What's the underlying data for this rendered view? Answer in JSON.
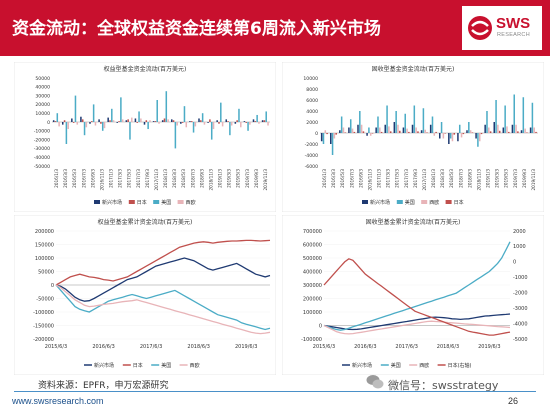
{
  "header": {
    "title": "资金流动：全球权益资金连续第6周流入新兴市场",
    "logo_text": "SWS",
    "logo_sub": "RESEARCH"
  },
  "colors": {
    "header_bg": "#c8102e",
    "em": "#1f3a72",
    "jp": "#c0504d",
    "us": "#4bacc6",
    "eu": "#e8b4b8",
    "dm": "#f2d8d6"
  },
  "source": "资料来源：EPFR，申万宏源研究",
  "footer": {
    "url": "www.swsresearch.com",
    "page": "26",
    "wechat": "微信号：swsstrategy"
  },
  "chart_data": [
    {
      "type": "bar",
      "title": "权益型基金资金流动(百万美元)",
      "yticks": [
        50000,
        40000,
        30000,
        20000,
        10000,
        0,
        -10000,
        -20000,
        -30000,
        -40000,
        -50000
      ],
      "ylim": [
        -50000,
        50000
      ],
      "xticks": [
        "2016/1/3",
        "2016/3/3",
        "2016/5/3",
        "2016/7/3",
        "2016/9/3",
        "2016/11/3",
        "2017/1/3",
        "2017/3/3",
        "2017/5/3",
        "2017/7/3",
        "2017/9/3",
        "2017/11/3",
        "2018/1/3",
        "2018/3/3",
        "2018/5/3",
        "2018/7/3",
        "2018/9/3",
        "2018/11/3",
        "2019/1/3",
        "2019/3/3",
        "2019/5/3",
        "2019/7/3",
        "2019/9/3",
        "2019/11/3"
      ],
      "series": [
        {
          "name": "新兴市场",
          "color": "#1f3a72",
          "values": [
            2000,
            -3000,
            4000,
            6000,
            -2000,
            3000,
            5000,
            -1000,
            2000,
            4000,
            -3000,
            1000,
            2000,
            3000,
            -2000,
            1000,
            4000,
            -1000,
            2000,
            3000,
            -2000,
            1000,
            3000,
            2000
          ]
        },
        {
          "name": "日本",
          "color": "#c0504d",
          "values": [
            1000,
            2000,
            -1000,
            3000,
            1000,
            -2000,
            2000,
            1000,
            3000,
            -1000,
            2000,
            1000,
            4000,
            2000,
            -1000,
            1000,
            2000,
            3000,
            -2000,
            1000,
            2000,
            -1000,
            1000,
            2000
          ]
        },
        {
          "name": "美国",
          "color": "#4bacc6",
          "values": [
            10000,
            -25000,
            30000,
            -15000,
            20000,
            -10000,
            15000,
            28000,
            -20000,
            12000,
            -8000,
            25000,
            35000,
            -30000,
            18000,
            -12000,
            10000,
            -20000,
            22000,
            -15000,
            15000,
            -10000,
            8000,
            12000
          ]
        },
        {
          "name": "西欧",
          "color": "#e8b4b8",
          "values": [
            -5000,
            -8000,
            -3000,
            -6000,
            -4000,
            -7000,
            2000,
            3000,
            5000,
            4000,
            2000,
            -2000,
            3000,
            -4000,
            -6000,
            -5000,
            -3000,
            -8000,
            -5000,
            -4000,
            -6000,
            -3000,
            -2000,
            -4000
          ]
        }
      ],
      "legend_position": "bottom"
    },
    {
      "type": "bar",
      "title": "固收型基金资金流动(百万美元)",
      "yticks": [
        10000,
        8000,
        6000,
        4000,
        2000,
        0,
        -2000,
        -4000,
        -6000
      ],
      "ylim": [
        -6000,
        10000
      ],
      "xticks": [
        "2016/1/3",
        "2016/3/3",
        "2016/5/3",
        "2016/7/3",
        "2016/9/3",
        "2016/11/3",
        "2017/1/3",
        "2017/3/3",
        "2017/5/3",
        "2017/7/3",
        "2017/9/3",
        "2017/11/3",
        "2018/1/3",
        "2018/3/3",
        "2018/5/3",
        "2018/7/3",
        "2018/9/3",
        "2018/11/3",
        "2019/1/3",
        "2019/3/3",
        "2019/5/3",
        "2019/7/3",
        "2019/9/3",
        "2019/11/3"
      ],
      "series": [
        {
          "name": "新兴市场",
          "color": "#1f3a72",
          "values": [
            -1500,
            -2000,
            500,
            1000,
            1500,
            -500,
            1000,
            1500,
            2000,
            1000,
            1500,
            500,
            1500,
            -1000,
            -2000,
            -1500,
            500,
            -1000,
            1500,
            2000,
            1000,
            1500,
            500,
            1000
          ]
        },
        {
          "name": "美国",
          "color": "#4bacc6",
          "values": [
            -2000,
            -4000,
            3000,
            2500,
            4000,
            1000,
            3000,
            5000,
            4000,
            3500,
            5000,
            4500,
            3000,
            2000,
            -1000,
            1500,
            2000,
            -2500,
            4000,
            6000,
            5000,
            7000,
            6500,
            5500
          ]
        },
        {
          "name": "西欧",
          "color": "#e8b4b8",
          "values": [
            500,
            -1000,
            1000,
            800,
            1500,
            -500,
            1000,
            1200,
            1500,
            800,
            1000,
            600,
            -500,
            -1000,
            -1500,
            -800,
            500,
            -1500,
            1000,
            1500,
            1200,
            1500,
            800,
            1000
          ]
        },
        {
          "name": "日本",
          "color": "#c0504d",
          "values": [
            -200,
            -300,
            100,
            200,
            300,
            -100,
            200,
            300,
            400,
            200,
            300,
            100,
            200,
            -100,
            -300,
            -200,
            100,
            -200,
            300,
            400,
            200,
            300,
            100,
            200
          ]
        }
      ],
      "legend_position": "bottom"
    },
    {
      "type": "line",
      "title": "权益型基金累计资金流动(百万美元)",
      "yticks": [
        200000,
        150000,
        100000,
        50000,
        0,
        -50000,
        -100000,
        -150000,
        -200000
      ],
      "ylim": [
        -200000,
        200000
      ],
      "xticks": [
        "2015/6/3",
        "2016/6/3",
        "2017/6/3",
        "2018/6/3",
        "2019/6/3"
      ],
      "x": [
        0,
        0.1,
        0.2,
        0.3,
        0.4,
        0.5,
        0.6,
        0.7,
        0.8,
        0.9,
        1.0,
        1.1,
        1.2,
        1.3,
        1.4,
        1.5,
        1.6,
        1.7,
        1.8,
        1.9,
        2.0,
        2.1,
        2.2,
        2.3,
        2.4,
        2.5,
        2.6,
        2.7,
        2.8,
        2.9,
        3.0,
        3.1,
        3.2,
        3.3,
        3.4,
        3.5,
        3.6,
        3.7,
        3.8,
        3.9,
        4.0,
        4.1,
        4.2,
        4.3,
        4.4,
        4.5
      ],
      "series": [
        {
          "name": "新兴市场",
          "color": "#1f3a72",
          "values": [
            0,
            -5000,
            -15000,
            -30000,
            -45000,
            -55000,
            -60000,
            -58000,
            -50000,
            -40000,
            -30000,
            -20000,
            -10000,
            0,
            10000,
            20000,
            25000,
            30000,
            40000,
            50000,
            60000,
            70000,
            75000,
            80000,
            85000,
            90000,
            95000,
            100000,
            95000,
            90000,
            80000,
            70000,
            60000,
            55000,
            60000,
            65000,
            70000,
            75000,
            80000,
            70000,
            60000,
            50000,
            40000,
            35000,
            30000,
            35000
          ]
        },
        {
          "name": "日本",
          "color": "#c0504d",
          "values": [
            0,
            10000,
            20000,
            30000,
            35000,
            40000,
            35000,
            30000,
            28000,
            25000,
            20000,
            18000,
            15000,
            20000,
            25000,
            30000,
            40000,
            50000,
            60000,
            70000,
            80000,
            90000,
            100000,
            110000,
            120000,
            130000,
            140000,
            145000,
            150000,
            155000,
            158000,
            160000,
            158000,
            155000,
            158000,
            160000,
            162000,
            163000,
            163000,
            164000,
            165000,
            165000,
            164000,
            163000,
            164000,
            165000
          ]
        },
        {
          "name": "美国",
          "color": "#4bacc6",
          "values": [
            0,
            -20000,
            -40000,
            -60000,
            -80000,
            -90000,
            -95000,
            -100000,
            -90000,
            -80000,
            -70000,
            -60000,
            -55000,
            -50000,
            -45000,
            -40000,
            -35000,
            -40000,
            -45000,
            -50000,
            -45000,
            -40000,
            -35000,
            -30000,
            -25000,
            -20000,
            -30000,
            -40000,
            -50000,
            -60000,
            -70000,
            -80000,
            -90000,
            -100000,
            -110000,
            -115000,
            -120000,
            -125000,
            -130000,
            -140000,
            -145000,
            -150000,
            -155000,
            -160000,
            -165000,
            -160000
          ]
        },
        {
          "name": "西欧",
          "color": "#e8b4b8",
          "values": [
            0,
            -10000,
            -25000,
            -40000,
            -55000,
            -65000,
            -75000,
            -80000,
            -78000,
            -75000,
            -72000,
            -70000,
            -68000,
            -65000,
            -62000,
            -60000,
            -58000,
            -55000,
            -60000,
            -65000,
            -70000,
            -75000,
            -80000,
            -85000,
            -90000,
            -95000,
            -100000,
            -105000,
            -110000,
            -115000,
            -120000,
            -125000,
            -130000,
            -135000,
            -140000,
            -145000,
            -150000,
            -155000,
            -160000,
            -165000,
            -170000,
            -175000,
            -178000,
            -180000,
            -178000,
            -175000
          ]
        }
      ],
      "legend_position": "bottom"
    },
    {
      "type": "line",
      "title": "固收型基金累计资金流动(百万美元)",
      "yticks_left": [
        700000,
        600000,
        500000,
        400000,
        300000,
        200000,
        100000,
        0,
        -100000
      ],
      "ylim_left": [
        -100000,
        700000
      ],
      "yticks_right": [
        2000,
        1000,
        0,
        -1000,
        -2000,
        -3000,
        -4000,
        -5000
      ],
      "ylim_right": [
        -5000,
        2000
      ],
      "xticks": [
        "2015/6/3",
        "2016/6/3",
        "2017/6/3",
        "2018/6/3",
        "2019/6/3"
      ],
      "x": [
        0,
        0.1,
        0.2,
        0.3,
        0.4,
        0.5,
        0.6,
        0.7,
        0.8,
        0.9,
        1.0,
        1.1,
        1.2,
        1.3,
        1.4,
        1.5,
        1.6,
        1.7,
        1.8,
        1.9,
        2.0,
        2.1,
        2.2,
        2.3,
        2.4,
        2.5,
        2.6,
        2.7,
        2.8,
        2.9,
        3.0,
        3.1,
        3.2,
        3.3,
        3.4,
        3.5,
        3.6,
        3.7,
        3.8,
        3.9,
        4.0,
        4.1,
        4.2,
        4.3,
        4.4,
        4.5
      ],
      "series": [
        {
          "name": "新兴市场",
          "color": "#1f3a72",
          "axis": "left",
          "values": [
            0,
            -5000,
            -10000,
            -15000,
            -20000,
            -25000,
            -28000,
            -30000,
            -28000,
            -25000,
            -20000,
            -15000,
            -10000,
            -5000,
            0,
            5000,
            10000,
            15000,
            20000,
            25000,
            30000,
            35000,
            40000,
            45000,
            50000,
            55000,
            60000,
            62000,
            60000,
            58000,
            55000,
            50000,
            48000,
            45000,
            48000,
            50000,
            55000,
            60000,
            65000,
            70000,
            72000,
            75000,
            78000,
            80000,
            82000,
            85000
          ]
        },
        {
          "name": "美国",
          "color": "#4bacc6",
          "axis": "left",
          "values": [
            0,
            -10000,
            -20000,
            -30000,
            -35000,
            -30000,
            -20000,
            -10000,
            0,
            10000,
            20000,
            30000,
            40000,
            50000,
            60000,
            70000,
            80000,
            90000,
            100000,
            110000,
            120000,
            130000,
            140000,
            150000,
            160000,
            170000,
            180000,
            190000,
            200000,
            210000,
            220000,
            230000,
            240000,
            260000,
            280000,
            300000,
            320000,
            340000,
            360000,
            380000,
            400000,
            430000,
            460000,
            500000,
            560000,
            620000
          ]
        },
        {
          "name": "西欧",
          "color": "#e8b4b8",
          "axis": "left",
          "values": [
            0,
            -15000,
            -30000,
            -45000,
            -55000,
            -60000,
            -62000,
            -60000,
            -55000,
            -50000,
            -45000,
            -40000,
            -35000,
            -30000,
            -25000,
            -20000,
            -15000,
            -10000,
            -5000,
            0,
            5000,
            10000,
            15000,
            20000,
            25000,
            30000,
            32000,
            30000,
            28000,
            25000,
            22000,
            20000,
            18000,
            15000,
            12000,
            10000,
            8000,
            5000,
            2000,
            0,
            -2000,
            -5000,
            -8000,
            -10000,
            -12000,
            -15000
          ]
        },
        {
          "name": "日本(右轴)",
          "color": "#c0504d",
          "axis": "right",
          "values": [
            -1500,
            -1200,
            -900,
            -600,
            -300,
            0,
            200,
            100,
            -200,
            -500,
            -800,
            -1000,
            -1200,
            -1400,
            -1600,
            -1800,
            -2000,
            -2200,
            -2400,
            -2600,
            -2800,
            -3000,
            -3200,
            -3300,
            -3400,
            -3500,
            -3600,
            -3700,
            -3800,
            -3900,
            -4000,
            -4100,
            -4200,
            -4300,
            -4400,
            -4500,
            -4550,
            -4600,
            -4650,
            -4700,
            -4750,
            -4750,
            -4700,
            -4650,
            -4600,
            -4550
          ]
        }
      ],
      "legend_position": "bottom"
    }
  ]
}
